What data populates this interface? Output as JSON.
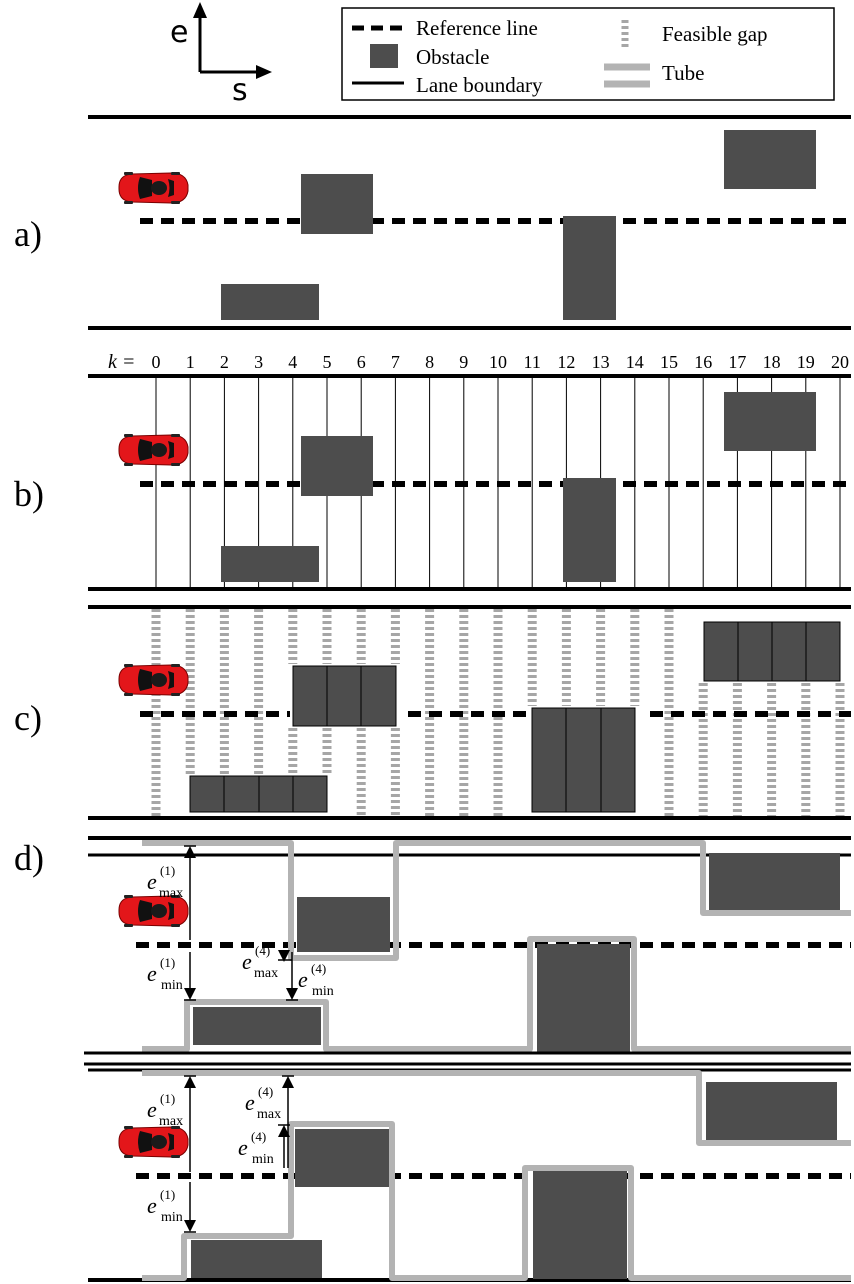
{
  "axes": {
    "e_label": "e",
    "s_label": "s"
  },
  "legend": {
    "reference_line": "Reference line",
    "obstacle": "Obstacle",
    "lane_boundary": "Lane boundary",
    "feasible_gap": "Feasible gap",
    "tube": "Tube"
  },
  "panels": {
    "a": "a)",
    "b": "b)",
    "c": "c)",
    "d": "d)"
  },
  "k_axis": {
    "prefix": "k =",
    "ticks": [
      "0",
      "1",
      "2",
      "3",
      "4",
      "5",
      "6",
      "7",
      "8",
      "9",
      "10",
      "11",
      "12",
      "13",
      "14",
      "15",
      "16",
      "17",
      "18",
      "19",
      "20"
    ]
  },
  "bounds": {
    "emax1": {
      "base": "e",
      "sub": "max",
      "sup": "(1)"
    },
    "emin1": {
      "base": "e",
      "sub": "min",
      "sup": "(1)"
    },
    "emax4": {
      "base": "e",
      "sub": "max",
      "sup": "(4)"
    },
    "emin4": {
      "base": "e",
      "sub": "min",
      "sup": "(4)"
    }
  },
  "colors": {
    "obstacle": "#4d4d4d",
    "tube": "#b3b3b3",
    "gap": "#a6a6a6",
    "car": "#e3161a",
    "line": "#000000"
  }
}
